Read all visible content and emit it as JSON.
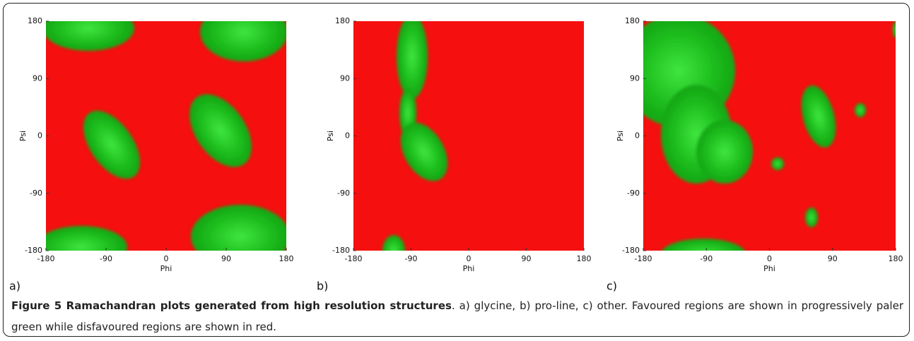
{
  "figure": {
    "panels": [
      {
        "label": "a)",
        "xlabel": "Phi",
        "ylabel": "Psi",
        "xlim": [
          -180,
          180
        ],
        "ylim": [
          -180,
          180
        ],
        "xticks": [
          -180,
          -90,
          0,
          90,
          180
        ],
        "yticks": [
          -180,
          -90,
          0,
          90,
          180
        ]
      },
      {
        "label": "b)",
        "xlabel": "Phi",
        "ylabel": "Psi",
        "xlim": [
          -180,
          180
        ],
        "ylim": [
          -180,
          180
        ],
        "xticks": [
          -180,
          -90,
          0,
          90,
          180
        ],
        "yticks": [
          -180,
          -90,
          0,
          90,
          180
        ]
      },
      {
        "label": "c)",
        "xlabel": "Phi",
        "ylabel": "Psi",
        "xlim": [
          -180,
          180
        ],
        "ylim": [
          -180,
          180
        ],
        "xticks": [
          -180,
          -90,
          0,
          90,
          180
        ],
        "yticks": [
          -180,
          -90,
          0,
          90,
          180
        ]
      }
    ],
    "caption": {
      "title": "Figure 5 Ramachandran plots generated from high resolution structures",
      "text": ". a) glycine, b) pro-line, c) other. Favoured regions are shown in progressively paler green while disfavoured regions are shown in red."
    }
  }
}
